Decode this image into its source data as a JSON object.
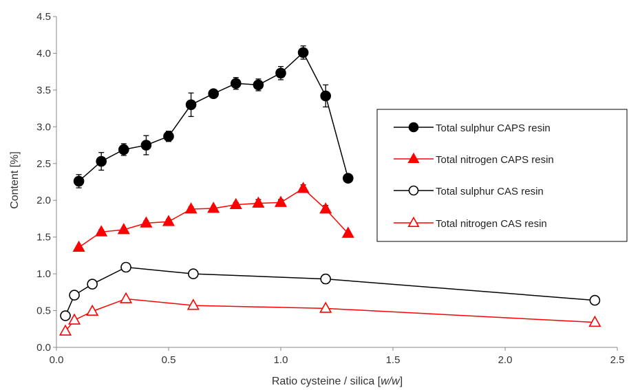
{
  "chart_data": {
    "type": "line",
    "xlabel": "Ratio cysteine / silica [",
    "xlabel_italic": "w/w",
    "xlabel_end": "]",
    "ylabel": "Content [%]",
    "xlim": [
      0,
      2.5
    ],
    "ylim": [
      0,
      4.5
    ],
    "xticks": [
      "0.0",
      "0.5",
      "1.0",
      "1.5",
      "2.0",
      "2.5"
    ],
    "yticks": [
      "0.0",
      "0.5",
      "1.0",
      "1.5",
      "2.0",
      "2.5",
      "3.0",
      "3.5",
      "4.0",
      "4.5"
    ],
    "grid": false,
    "legend_position": "right",
    "series": [
      {
        "name": "Total sulphur CAPS resin",
        "color": "#000000",
        "marker": "circle",
        "filled": true,
        "x": [
          0.1,
          0.2,
          0.3,
          0.4,
          0.5,
          0.6,
          0.7,
          0.8,
          0.9,
          1.0,
          1.1,
          1.2,
          1.3
        ],
        "y": [
          2.26,
          2.53,
          2.69,
          2.75,
          2.87,
          3.3,
          3.45,
          3.59,
          3.57,
          3.73,
          4.01,
          3.42,
          2.3
        ],
        "err": [
          0.09,
          0.12,
          0.08,
          0.13,
          0.07,
          0.16,
          0.05,
          0.08,
          0.08,
          0.09,
          0.09,
          0.15,
          0.03
        ]
      },
      {
        "name": "Total nitrogen CAPS resin",
        "color": "#ff0000",
        "marker": "triangle",
        "filled": true,
        "x": [
          0.1,
          0.2,
          0.3,
          0.4,
          0.5,
          0.6,
          0.7,
          0.8,
          0.9,
          1.0,
          1.1,
          1.2,
          1.3
        ],
        "y": [
          1.36,
          1.57,
          1.6,
          1.69,
          1.71,
          1.88,
          1.89,
          1.94,
          1.96,
          1.97,
          2.16,
          1.88,
          1.55
        ],
        "err": [
          0.02,
          0.03,
          0.02,
          0.03,
          0.03,
          0.03,
          0.02,
          0.03,
          0.05,
          0.04,
          0.05,
          0.05,
          0.02
        ]
      },
      {
        "name": "Total sulphur CAS resin",
        "color": "#000000",
        "marker": "circle",
        "filled": false,
        "x": [
          0.04,
          0.08,
          0.16,
          0.31,
          0.61,
          1.2,
          2.4
        ],
        "y": [
          0.43,
          0.71,
          0.86,
          1.09,
          1.0,
          0.93,
          0.64
        ],
        "err": [
          0.02,
          0.03,
          0.03,
          0.03,
          0.03,
          0.06,
          0.02
        ]
      },
      {
        "name": "Total nitrogen CAS resin",
        "color": "#ff0000",
        "marker": "triangle",
        "filled": false,
        "x": [
          0.04,
          0.08,
          0.16,
          0.31,
          0.61,
          1.2,
          2.4
        ],
        "y": [
          0.22,
          0.37,
          0.49,
          0.66,
          0.57,
          0.53,
          0.34
        ],
        "err": [
          0.02,
          0.02,
          0.02,
          0.02,
          0.02,
          0.02,
          0.02
        ]
      }
    ]
  }
}
